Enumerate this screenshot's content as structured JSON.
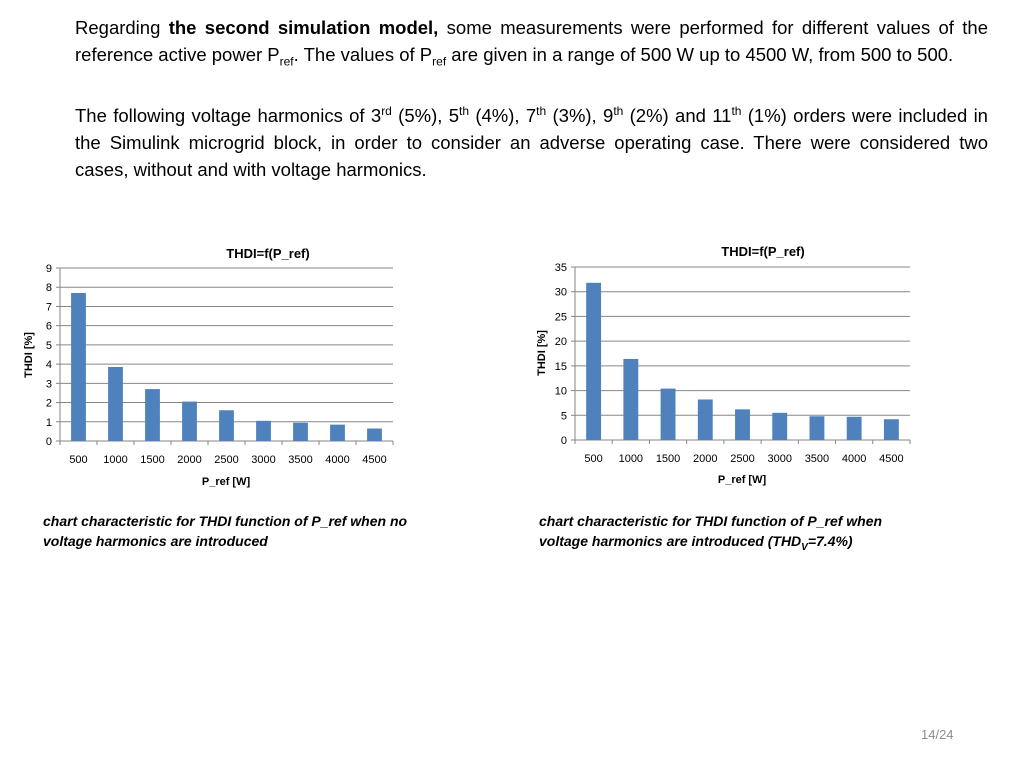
{
  "text": {
    "p1": {
      "lead": "Regarding ",
      "bold": "the second simulation model,",
      "t1": " some measurements were performed for different values of the reference active power P",
      "sub1": "ref",
      "t2": ". The values of P",
      "sub2": "ref",
      "t3": " are given in a range of 500 W up to 4500 W, from 500 to 500."
    },
    "p2": {
      "t1": "The following  voltage harmonics of 3",
      "s1": "rd",
      "t2": " (5%), 5",
      "s2": "th",
      "t3": " (4%), 7",
      "s3": "th",
      "t4": " (3%), 9",
      "s4": "th",
      "t5": " (2%) and 11",
      "s5": "th",
      "t6": " (1%) orders were included in the Simulink microgrid block, in order to consider an adverse operating case. There were considered two cases, without and with voltage harmonics."
    }
  },
  "captions": {
    "left": "chart characteristic for THDI function of P_ref when no voltage harmonics are introduced",
    "right_a": "chart characteristic for THDI function of P_ref when voltage harmonics are introduced (THD",
    "right_sub": "V",
    "right_b": "=7.4%)"
  },
  "page_number": "14/24",
  "chart_data": [
    {
      "type": "bar",
      "title": "THDI=f(P_ref)",
      "xlabel": "P_ref [W]",
      "ylabel": "THDI [%]",
      "categories": [
        "500",
        "1000",
        "1500",
        "2000",
        "2500",
        "3000",
        "3500",
        "4000",
        "4500"
      ],
      "values": [
        7.7,
        3.85,
        2.7,
        2.05,
        1.6,
        1.05,
        0.95,
        0.85,
        0.65
      ],
      "ylim": [
        0,
        9
      ],
      "yticks": [
        0,
        1,
        2,
        3,
        4,
        5,
        6,
        7,
        8,
        9
      ],
      "grid": true,
      "bar_color": "#4f81bd"
    },
    {
      "type": "bar",
      "title": "THDI=f(P_ref)",
      "xlabel": "P_ref [W]",
      "ylabel": "THDI [%]",
      "categories": [
        "500",
        "1000",
        "1500",
        "2000",
        "2500",
        "3000",
        "3500",
        "4000",
        "4500"
      ],
      "values": [
        31.8,
        16.4,
        10.4,
        8.2,
        6.2,
        5.5,
        4.8,
        4.7,
        4.2
      ],
      "ylim": [
        0,
        35
      ],
      "yticks": [
        0,
        5,
        10,
        15,
        20,
        25,
        30,
        35
      ],
      "grid": true,
      "bar_color": "#4f81bd"
    }
  ]
}
